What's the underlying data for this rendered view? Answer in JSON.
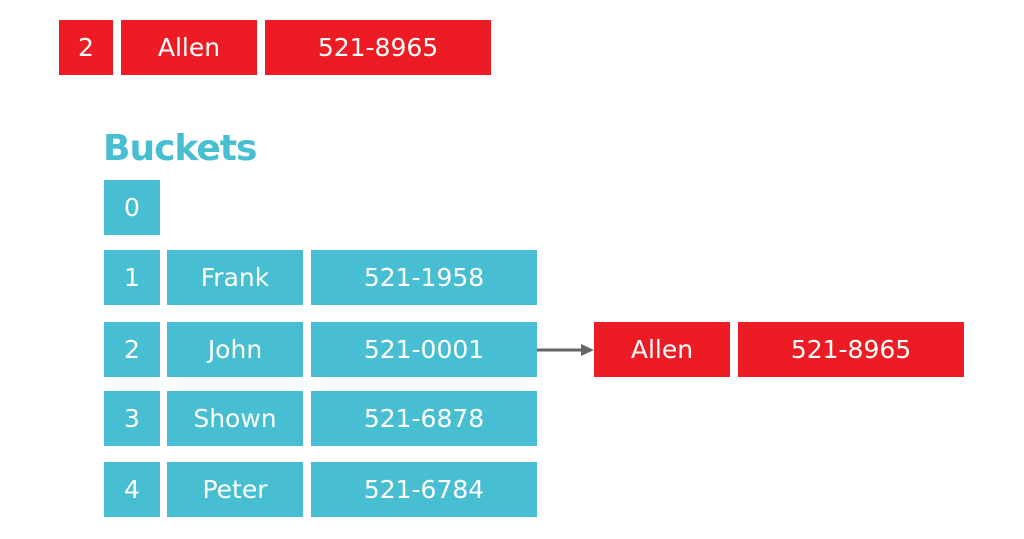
{
  "incoming": {
    "key": "2",
    "name": "Allen",
    "phone": "521-8965"
  },
  "title": "Buckets",
  "buckets": [
    {
      "index": "0"
    },
    {
      "index": "1",
      "name": "Frank",
      "phone": "521-1958"
    },
    {
      "index": "2",
      "name": "John",
      "phone": "521-0001",
      "chain": {
        "name": "Allen",
        "phone": "521-8965"
      }
    },
    {
      "index": "3",
      "name": "Shown",
      "phone": "521-6878"
    },
    {
      "index": "4",
      "name": "Peter",
      "phone": "521-6784"
    }
  ]
}
